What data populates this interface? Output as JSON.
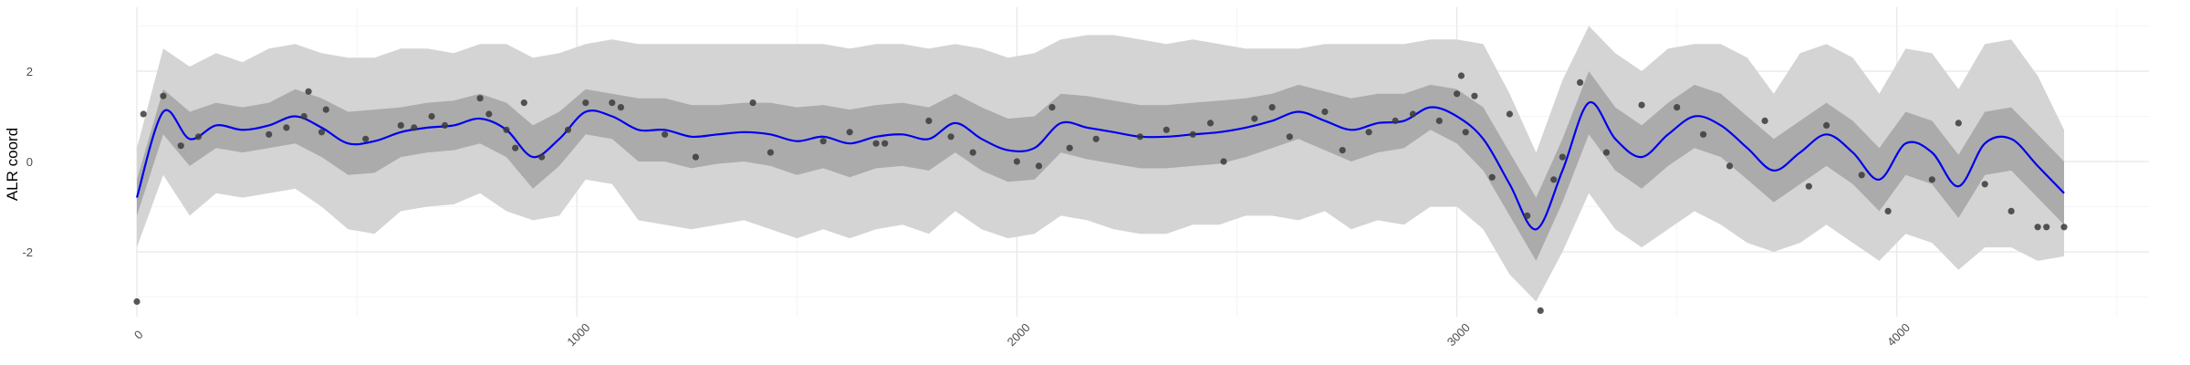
{
  "chart_data": {
    "type": "line",
    "title": "",
    "xlabel": "",
    "ylabel": "ALR coord",
    "xlim": [
      -150,
      4500
    ],
    "ylim": [
      -3.5,
      3.5
    ],
    "x_ticks": [
      0,
      1000,
      2000,
      3000,
      4000
    ],
    "x_tick_labels": [
      "0",
      "1000",
      "2000",
      "3000",
      "4000"
    ],
    "y_ticks": [
      -2,
      0,
      2
    ],
    "y_tick_labels": [
      "-2",
      "0",
      "2"
    ],
    "grid": true,
    "legend": "none",
    "colors": {
      "mean_line": "#0000ee",
      "inner_band": "#ababab",
      "outer_band": "#d4d4d4",
      "points": "#3a3a3a",
      "grid_major": "#e6e6e6",
      "grid_minor": "#f2f2f2"
    },
    "series": [
      {
        "kind": "line",
        "x": [
          0,
          60,
          120,
          180,
          240,
          300,
          360,
          420,
          480,
          540,
          600,
          660,
          720,
          780,
          840,
          900,
          960,
          1020,
          1080,
          1140,
          1200,
          1260,
          1320,
          1380,
          1440,
          1500,
          1560,
          1620,
          1680,
          1740,
          1800,
          1860,
          1920,
          1980,
          2040,
          2100,
          2160,
          2220,
          2280,
          2340,
          2400,
          2460,
          2520,
          2580,
          2640,
          2700,
          2760,
          2820,
          2880,
          2940,
          3000,
          3060,
          3120,
          3180,
          3240,
          3300,
          3360,
          3420,
          3480,
          3540,
          3600,
          3660,
          3720,
          3780,
          3840,
          3900,
          3960,
          4020,
          4080,
          4140,
          4200,
          4260,
          4320,
          4380
        ],
        "y": [
          -0.8,
          1.1,
          0.5,
          0.8,
          0.7,
          0.8,
          1.0,
          0.75,
          0.4,
          0.45,
          0.65,
          0.75,
          0.8,
          0.95,
          0.7,
          0.1,
          0.5,
          1.1,
          1.0,
          0.7,
          0.7,
          0.55,
          0.6,
          0.65,
          0.6,
          0.45,
          0.55,
          0.4,
          0.55,
          0.6,
          0.5,
          0.85,
          0.5,
          0.25,
          0.3,
          0.85,
          0.75,
          0.65,
          0.55,
          0.55,
          0.6,
          0.65,
          0.75,
          0.9,
          1.1,
          0.9,
          0.7,
          0.85,
          0.9,
          1.2,
          1.0,
          0.5,
          -0.5,
          -1.5,
          -0.2,
          1.3,
          0.5,
          0.1,
          0.6,
          1.0,
          0.8,
          0.3,
          -0.2,
          0.2,
          0.6,
          0.2,
          -0.4,
          0.4,
          0.2,
          -0.55,
          0.4,
          0.5,
          -0.1,
          -0.7
        ]
      },
      {
        "kind": "band_inner",
        "x": [
          0,
          60,
          120,
          180,
          240,
          300,
          360,
          420,
          480,
          540,
          600,
          660,
          720,
          780,
          840,
          900,
          960,
          1020,
          1080,
          1140,
          1200,
          1260,
          1320,
          1380,
          1440,
          1500,
          1560,
          1620,
          1680,
          1740,
          1800,
          1860,
          1920,
          1980,
          2040,
          2100,
          2160,
          2220,
          2280,
          2340,
          2400,
          2460,
          2520,
          2580,
          2640,
          2700,
          2760,
          2820,
          2880,
          2940,
          3000,
          3060,
          3120,
          3180,
          3240,
          3300,
          3360,
          3420,
          3480,
          3540,
          3600,
          3660,
          3720,
          3780,
          3840,
          3900,
          3960,
          4020,
          4080,
          4140,
          4200,
          4260,
          4320,
          4380
        ],
        "lower": [
          -1.2,
          0.6,
          -0.1,
          0.3,
          0.2,
          0.3,
          0.4,
          0.1,
          -0.3,
          -0.25,
          0.1,
          0.2,
          0.25,
          0.4,
          0.1,
          -0.6,
          -0.1,
          0.6,
          0.5,
          0.0,
          0.0,
          -0.15,
          -0.05,
          0.0,
          -0.1,
          -0.3,
          -0.15,
          -0.35,
          -0.15,
          -0.1,
          -0.2,
          0.2,
          -0.2,
          -0.45,
          -0.4,
          0.2,
          0.05,
          -0.05,
          -0.15,
          -0.15,
          -0.1,
          -0.05,
          0.1,
          0.3,
          0.5,
          0.25,
          0.0,
          0.2,
          0.3,
          0.7,
          0.4,
          -0.2,
          -1.2,
          -2.2,
          -0.9,
          0.6,
          -0.2,
          -0.6,
          -0.1,
          0.3,
          0.1,
          -0.4,
          -0.9,
          -0.5,
          -0.1,
          -0.5,
          -1.1,
          -0.3,
          -0.5,
          -1.25,
          -0.3,
          -0.2,
          -0.8,
          -1.4
        ],
        "upper": [
          -0.4,
          1.6,
          1.1,
          1.3,
          1.2,
          1.3,
          1.6,
          1.4,
          1.1,
          1.15,
          1.2,
          1.3,
          1.35,
          1.5,
          1.3,
          0.8,
          1.1,
          1.6,
          1.5,
          1.4,
          1.4,
          1.25,
          1.25,
          1.3,
          1.3,
          1.2,
          1.25,
          1.15,
          1.25,
          1.3,
          1.2,
          1.5,
          1.2,
          0.95,
          1.0,
          1.5,
          1.45,
          1.35,
          1.25,
          1.25,
          1.3,
          1.35,
          1.4,
          1.5,
          1.7,
          1.55,
          1.4,
          1.5,
          1.5,
          1.7,
          1.6,
          1.2,
          0.2,
          -0.8,
          0.5,
          2.0,
          1.2,
          0.8,
          1.3,
          1.7,
          1.5,
          1.0,
          0.5,
          0.9,
          1.3,
          0.9,
          0.3,
          1.1,
          0.9,
          0.15,
          1.1,
          1.2,
          0.6,
          0.0
        ]
      },
      {
        "kind": "band_outer",
        "x": [
          0,
          60,
          120,
          180,
          240,
          300,
          360,
          420,
          480,
          540,
          600,
          660,
          720,
          780,
          840,
          900,
          960,
          1020,
          1080,
          1140,
          1200,
          1260,
          1320,
          1380,
          1440,
          1500,
          1560,
          1620,
          1680,
          1740,
          1800,
          1860,
          1920,
          1980,
          2040,
          2100,
          2160,
          2220,
          2280,
          2340,
          2400,
          2460,
          2520,
          2580,
          2640,
          2700,
          2760,
          2820,
          2880,
          2940,
          3000,
          3060,
          3120,
          3180,
          3240,
          3300,
          3360,
          3420,
          3480,
          3540,
          3600,
          3660,
          3720,
          3780,
          3840,
          3900,
          3960,
          4020,
          4080,
          4140,
          4200,
          4260,
          4320,
          4380
        ],
        "lower": [
          -1.9,
          -0.3,
          -1.2,
          -0.7,
          -0.8,
          -0.7,
          -0.6,
          -1.0,
          -1.5,
          -1.6,
          -1.1,
          -1.0,
          -0.95,
          -0.7,
          -1.1,
          -1.3,
          -1.2,
          -0.4,
          -0.5,
          -1.3,
          -1.4,
          -1.5,
          -1.4,
          -1.3,
          -1.5,
          -1.7,
          -1.5,
          -1.7,
          -1.5,
          -1.4,
          -1.6,
          -1.1,
          -1.5,
          -1.7,
          -1.6,
          -1.2,
          -1.3,
          -1.5,
          -1.6,
          -1.6,
          -1.4,
          -1.4,
          -1.2,
          -1.2,
          -1.3,
          -1.1,
          -1.5,
          -1.3,
          -1.4,
          -1.0,
          -1.0,
          -1.5,
          -2.5,
          -3.1,
          -2.0,
          -0.7,
          -1.5,
          -1.9,
          -1.5,
          -1.1,
          -1.4,
          -1.8,
          -2.0,
          -1.8,
          -1.4,
          -1.8,
          -2.2,
          -1.6,
          -1.8,
          -2.4,
          -1.9,
          -1.9,
          -2.2,
          -2.1
        ],
        "upper": [
          0.3,
          2.5,
          2.1,
          2.4,
          2.2,
          2.5,
          2.6,
          2.4,
          2.3,
          2.3,
          2.5,
          2.5,
          2.4,
          2.6,
          2.6,
          2.3,
          2.4,
          2.6,
          2.7,
          2.6,
          2.6,
          2.6,
          2.6,
          2.6,
          2.6,
          2.6,
          2.6,
          2.5,
          2.6,
          2.6,
          2.5,
          2.6,
          2.5,
          2.3,
          2.4,
          2.7,
          2.8,
          2.8,
          2.7,
          2.6,
          2.7,
          2.6,
          2.5,
          2.5,
          2.5,
          2.6,
          2.6,
          2.6,
          2.6,
          2.7,
          2.7,
          2.6,
          1.5,
          0.2,
          1.8,
          3.0,
          2.4,
          2.0,
          2.5,
          2.6,
          2.6,
          2.3,
          1.5,
          2.4,
          2.6,
          2.3,
          1.5,
          2.5,
          2.4,
          1.6,
          2.6,
          2.7,
          1.9,
          0.7
        ]
      },
      {
        "kind": "points",
        "x": [
          0,
          15,
          60,
          100,
          140,
          300,
          340,
          380,
          390,
          420,
          430,
          520,
          600,
          630,
          670,
          700,
          780,
          800,
          840,
          860,
          880,
          920,
          980,
          1020,
          1080,
          1100,
          1200,
          1270,
          1400,
          1440,
          1560,
          1620,
          1680,
          1700,
          1800,
          1850,
          1900,
          2000,
          2050,
          2080,
          2120,
          2180,
          2280,
          2340,
          2400,
          2440,
          2470,
          2540,
          2580,
          2620,
          2700,
          2740,
          2800,
          2860,
          2900,
          2960,
          3000,
          3010,
          3020,
          3040,
          3080,
          3120,
          3160,
          3190,
          3220,
          3240,
          3280,
          3340,
          3420,
          3500,
          3560,
          3620,
          3700,
          3800,
          3840,
          3920,
          3980,
          4080,
          4140,
          4200,
          4260,
          4320,
          4340,
          4380
        ],
        "y": [
          -3.1,
          1.05,
          1.45,
          0.35,
          0.55,
          0.6,
          0.75,
          1.0,
          1.55,
          0.65,
          1.15,
          0.5,
          0.8,
          0.75,
          1.0,
          0.8,
          1.4,
          1.05,
          0.7,
          0.3,
          1.3,
          0.1,
          0.7,
          1.3,
          1.3,
          1.2,
          0.6,
          0.1,
          1.3,
          0.2,
          0.45,
          0.65,
          0.4,
          0.4,
          0.9,
          0.55,
          0.2,
          0.0,
          -0.1,
          1.2,
          0.3,
          0.5,
          0.55,
          0.7,
          0.6,
          0.85,
          0.0,
          0.95,
          1.2,
          0.55,
          1.1,
          0.25,
          0.65,
          0.9,
          1.05,
          0.9,
          1.5,
          1.9,
          0.65,
          1.45,
          -0.35,
          1.05,
          -1.2,
          -3.3,
          -0.4,
          0.1,
          1.75,
          0.2,
          1.25,
          1.2,
          0.6,
          -0.1,
          0.9,
          -0.55,
          0.8,
          -0.3,
          -1.1,
          -0.4,
          0.85,
          -0.5,
          -1.1,
          -1.45,
          -1.45,
          -1.45
        ]
      }
    ]
  }
}
